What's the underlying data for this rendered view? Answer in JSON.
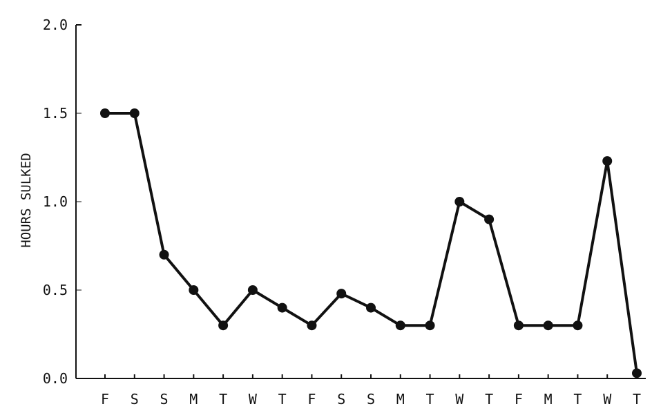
{
  "chart_data": {
    "type": "line",
    "title": "",
    "xlabel": "",
    "ylabel": "HOURS SULKED",
    "ylim": [
      0,
      2.0
    ],
    "yticks": [
      "0.0",
      "0.5",
      "1.0",
      "1.5",
      "2.0"
    ],
    "categories": [
      "F",
      "S",
      "S",
      "M",
      "T",
      "W",
      "T",
      "F",
      "S",
      "S",
      "M",
      "T",
      "W",
      "T",
      "F",
      "M",
      "T",
      "W",
      "T"
    ],
    "values": [
      1.5,
      1.5,
      0.7,
      0.5,
      0.3,
      0.5,
      0.4,
      0.3,
      0.48,
      0.4,
      0.3,
      0.3,
      1.0,
      0.9,
      0.3,
      0.3,
      0.3,
      1.23,
      0.03
    ],
    "grid": false,
    "color": "#111111"
  }
}
